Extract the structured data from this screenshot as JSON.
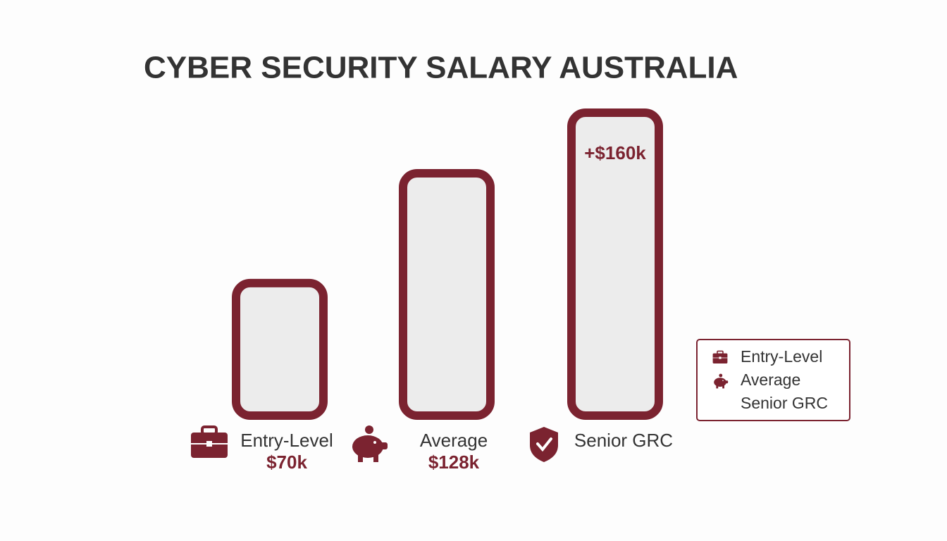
{
  "chart_data": {
    "type": "bar",
    "title": "CYBER SECURITY SALARY AUSTRALIA",
    "categories": [
      "Entry-Level",
      "Average",
      "Senior GRC"
    ],
    "values": [
      70,
      128,
      160
    ],
    "value_labels": [
      "$70k",
      "$128k",
      "+$160k"
    ],
    "color": "#7b2330",
    "legend": "right"
  }
}
